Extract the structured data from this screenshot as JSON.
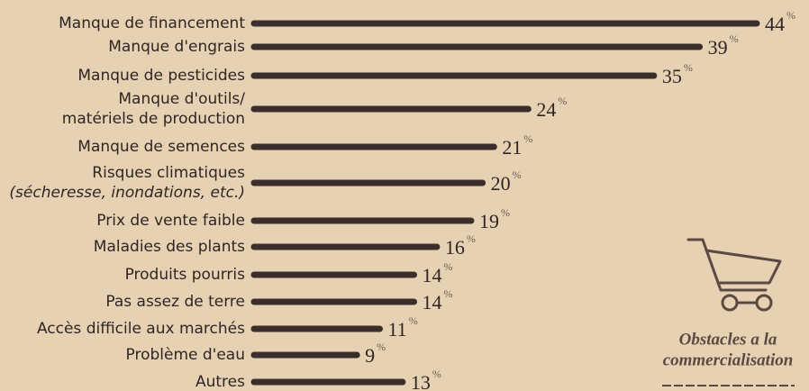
{
  "chart_data": {
    "type": "bar",
    "orientation": "horizontal",
    "categories": [
      "Manque de financement",
      "Manque d'engrais",
      "Manque de pesticides",
      [
        "Manque d'outils/",
        "matériels de production"
      ],
      "Manque de semences",
      [
        "Risques climatiques",
        "(sécheresse, inondations, etc.)"
      ],
      "Prix de vente faible",
      "Maladies des plants",
      "Produits pourris",
      "Pas assez de terre",
      "Accès difficile aux marchés",
      "Problème d'eau",
      "Autres"
    ],
    "values": [
      44,
      39,
      35,
      24,
      21,
      20,
      19,
      16,
      14,
      14,
      11,
      9,
      13
    ],
    "unit": "%",
    "color": "#3a2e2a",
    "xlim": [
      0,
      44
    ],
    "annotation": [
      "Obstacles a la",
      "commercialisation"
    ]
  }
}
